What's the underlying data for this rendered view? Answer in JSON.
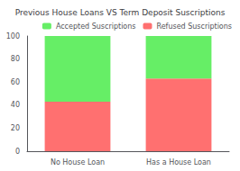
{
  "chart_data": {
    "type": "bar",
    "title": "Previous House Loans VS Term Deposit Suscriptions",
    "categories": [
      "No House Loan",
      "Has a House Loan"
    ],
    "series": [
      {
        "name": "Refused Suscriptions",
        "color": "#FF7070",
        "values": [
          43,
          63
        ]
      },
      {
        "name": "Accepted Suscriptions",
        "color": "#66EE66",
        "values": [
          57,
          37
        ]
      }
    ],
    "stacked": true,
    "ylim": [
      0,
      100
    ],
    "yticks": [
      0,
      20,
      40,
      60,
      80,
      100
    ],
    "grid": false,
    "legend": "upper right"
  }
}
